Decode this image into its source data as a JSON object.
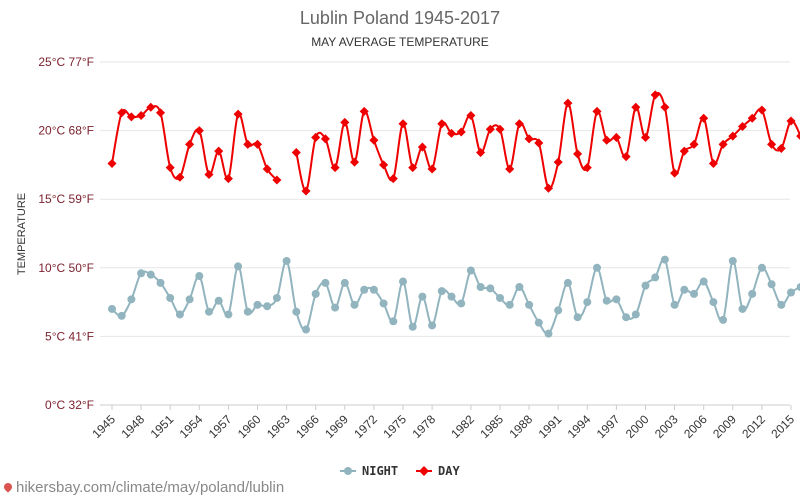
{
  "title": "Lublin Poland 1945-2017",
  "subtitle": "MAY AVERAGE TEMPERATURE",
  "source": "hikersbay.com/climate/may/poland/lublin",
  "colors": {
    "day": "#ee0000",
    "night": "#91b4be",
    "ytick": "#7a1f2b",
    "grid": "#e6e6e6"
  },
  "chart_data": {
    "type": "line",
    "title": "Lublin Poland 1945-2017",
    "subtitle": "MAY AVERAGE TEMPERATURE",
    "ylabel": "TEMPERATURE",
    "xlabel": "",
    "ylim": [
      0,
      25
    ],
    "xlim": [
      1945,
      2017
    ],
    "grid": "horizontal",
    "legend_position": "bottom-center",
    "y_ticks": [
      0,
      5,
      10,
      15,
      20,
      25
    ],
    "y_tick_labels": [
      "0°C 32°F",
      "5°C 41°F",
      "10°C 50°F",
      "15°C 59°F",
      "20°C 68°F",
      "25°C 77°F"
    ],
    "x_ticks": [
      1945,
      1948,
      1951,
      1954,
      1957,
      1960,
      1963,
      1966,
      1969,
      1972,
      1975,
      1978,
      1982,
      1985,
      1988,
      1991,
      1994,
      1997,
      2000,
      2003,
      2006,
      2009,
      2012,
      2015
    ],
    "x": [
      1945,
      1946,
      1947,
      1948,
      1949,
      1950,
      1951,
      1952,
      1953,
      1954,
      1955,
      1956,
      1957,
      1958,
      1959,
      1960,
      1961,
      1962,
      1963,
      1964,
      1965,
      1966,
      1967,
      1968,
      1969,
      1970,
      1971,
      1972,
      1973,
      1974,
      1975,
      1976,
      1977,
      1978,
      1979,
      1980,
      1981,
      1982,
      1983,
      1984,
      1985,
      1986,
      1987,
      1988,
      1989,
      1990,
      1991,
      1992,
      1993,
      1994,
      1995,
      1996,
      1997,
      1998,
      1999,
      2000,
      2001,
      2002,
      2003,
      2004,
      2005,
      2006,
      2007,
      2008,
      2009,
      2010,
      2011,
      2012,
      2013,
      2014,
      2015,
      2016,
      2017
    ],
    "series": [
      {
        "name": "NIGHT",
        "color": "#91b4be",
        "values": [
          7.0,
          6.5,
          7.7,
          9.6,
          9.5,
          8.9,
          7.8,
          6.6,
          7.7,
          9.4,
          6.8,
          7.6,
          6.6,
          10.1,
          6.8,
          7.3,
          7.2,
          7.8,
          10.5,
          6.8,
          5.5,
          8.1,
          8.9,
          7.1,
          8.9,
          7.3,
          8.4,
          8.4,
          7.4,
          6.1,
          9.0,
          5.7,
          7.9,
          5.8,
          8.3,
          7.9,
          7.4,
          9.8,
          8.6,
          8.5,
          7.8,
          7.3,
          8.6,
          7.3,
          6.0,
          5.2,
          6.9,
          8.9,
          6.4,
          7.5,
          10.0,
          7.6,
          7.7,
          6.4,
          6.6,
          8.7,
          9.3,
          10.6,
          7.3,
          8.4,
          8.1,
          9.0,
          7.5,
          6.2,
          10.5,
          7.0,
          8.1,
          10.0,
          8.8,
          7.3,
          8.2,
          8.6,
          null
        ]
      },
      {
        "name": "DAY",
        "color": "#ee0000",
        "values": [
          17.6,
          21.3,
          21.0,
          21.1,
          21.7,
          21.3,
          17.3,
          16.6,
          19.0,
          20.0,
          16.8,
          18.5,
          16.5,
          21.2,
          19.0,
          19.0,
          17.2,
          16.4,
          null,
          18.4,
          15.6,
          19.5,
          19.4,
          17.3,
          20.6,
          17.7,
          21.4,
          19.3,
          17.5,
          16.5,
          20.5,
          17.3,
          18.8,
          17.2,
          20.5,
          19.8,
          19.9,
          21.1,
          18.4,
          20.1,
          20.1,
          17.2,
          20.5,
          19.4,
          19.1,
          15.8,
          17.7,
          22.0,
          18.3,
          17.3,
          21.4,
          19.3,
          19.5,
          18.1,
          21.7,
          19.5,
          22.6,
          21.7,
          16.9,
          18.5,
          19.0,
          20.9,
          17.6,
          19.0,
          19.6,
          20.3,
          20.9,
          21.5,
          19.0,
          18.7,
          20.7,
          19.6,
          null
        ]
      }
    ]
  }
}
